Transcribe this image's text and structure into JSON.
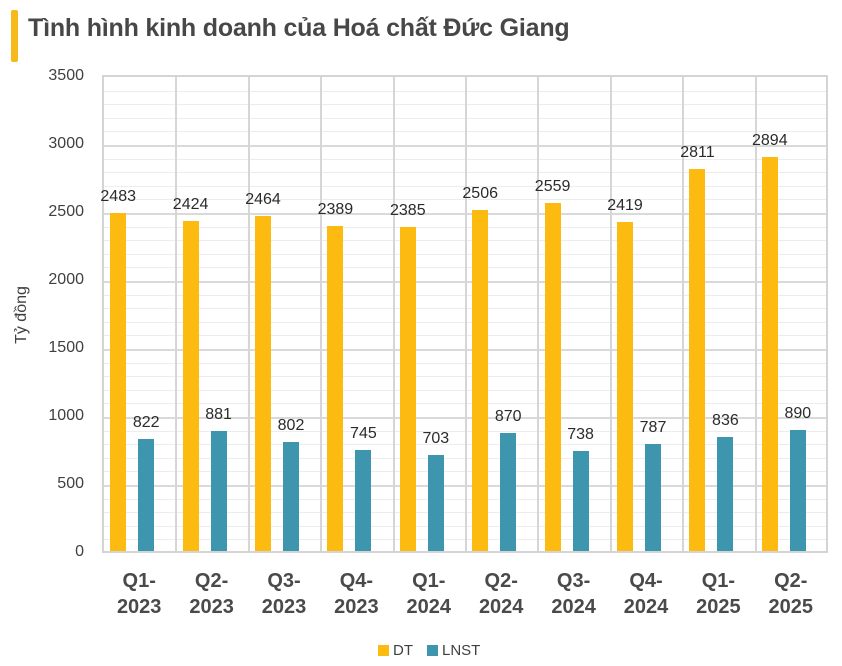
{
  "title": "Tình hình kinh doanh của Hoá chất Đức Giang",
  "colors": {
    "accent": "#F6BA1A",
    "dt": "#FDBB12",
    "lnst": "#3E96AE",
    "grid_major": "#DADADA",
    "grid_minor": "#EDEDED"
  },
  "chart_data": {
    "type": "bar",
    "title": "Tình hình kinh doanh của Hoá chất Đức Giang",
    "xlabel": "",
    "ylabel": "Tỷ đồng",
    "ylim": [
      0,
      3500
    ],
    "yticks": [
      0,
      500,
      1000,
      1500,
      2000,
      2500,
      3000,
      3500
    ],
    "grid": true,
    "legend_position": "bottom",
    "categories": [
      "Q1-2023",
      "Q2-2023",
      "Q3-2023",
      "Q4-2023",
      "Q1-2024",
      "Q2-2024",
      "Q3-2024",
      "Q4-2024",
      "Q1-2025",
      "Q2-2025"
    ],
    "category_lines": [
      [
        "Q1-",
        "2023"
      ],
      [
        "Q2-",
        "2023"
      ],
      [
        "Q3-",
        "2023"
      ],
      [
        "Q4-",
        "2023"
      ],
      [
        "Q1-",
        "2024"
      ],
      [
        "Q2-",
        "2024"
      ],
      [
        "Q3-",
        "2024"
      ],
      [
        "Q4-",
        "2024"
      ],
      [
        "Q1-",
        "2025"
      ],
      [
        "Q2-",
        "2025"
      ]
    ],
    "series": [
      {
        "name": "DT",
        "color": "#FDBB12",
        "values": [
          2483,
          2424,
          2464,
          2389,
          2385,
          2506,
          2559,
          2419,
          2811,
          2894
        ]
      },
      {
        "name": "LNST",
        "color": "#3E96AE",
        "values": [
          822,
          881,
          802,
          745,
          703,
          870,
          738,
          787,
          836,
          890
        ]
      }
    ]
  },
  "legend": [
    {
      "label": "DT",
      "color": "#FDBB12"
    },
    {
      "label": "LNST",
      "color": "#3E96AE"
    }
  ]
}
